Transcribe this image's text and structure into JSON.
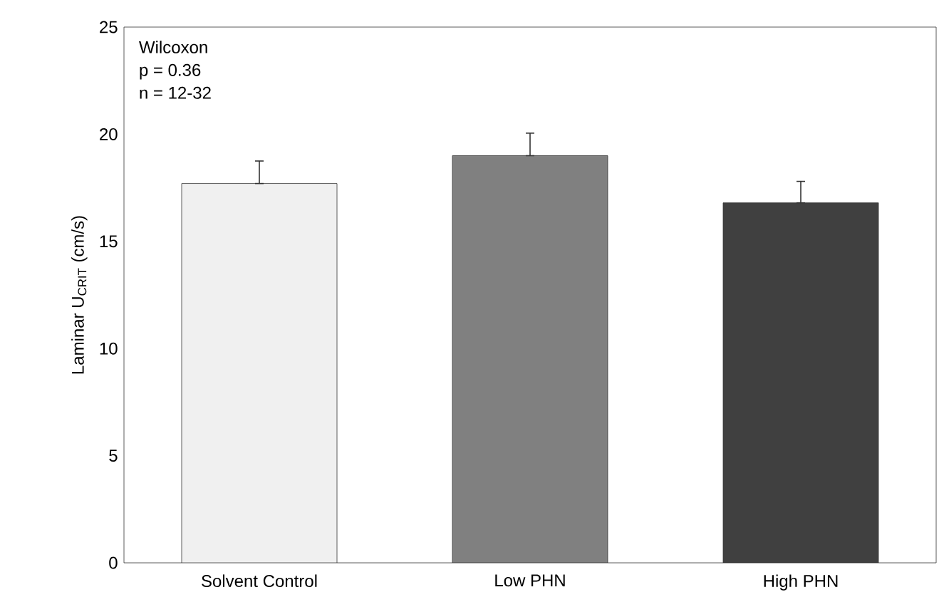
{
  "chart_data": {
    "type": "bar",
    "ylabel": "Laminar U$_{CRIT}$ (cm/s)",
    "categories": [
      "Solvent Control",
      "Low PHN",
      "High PHN"
    ],
    "values": [
      17.7,
      19.0,
      16.8
    ],
    "colors": [
      "#f0f0f0",
      "#808080",
      "#404040"
    ],
    "errors": [
      [
        17.7,
        18.75
      ],
      [
        19.0,
        20.05
      ],
      [
        16.8,
        17.8
      ]
    ],
    "ylim": [
      0,
      25
    ],
    "yticks": [
      0,
      5,
      10,
      15,
      20,
      25
    ],
    "annotations": [
      "Wilcoxon",
      "p = 0.36",
      "n = 12-32"
    ]
  }
}
